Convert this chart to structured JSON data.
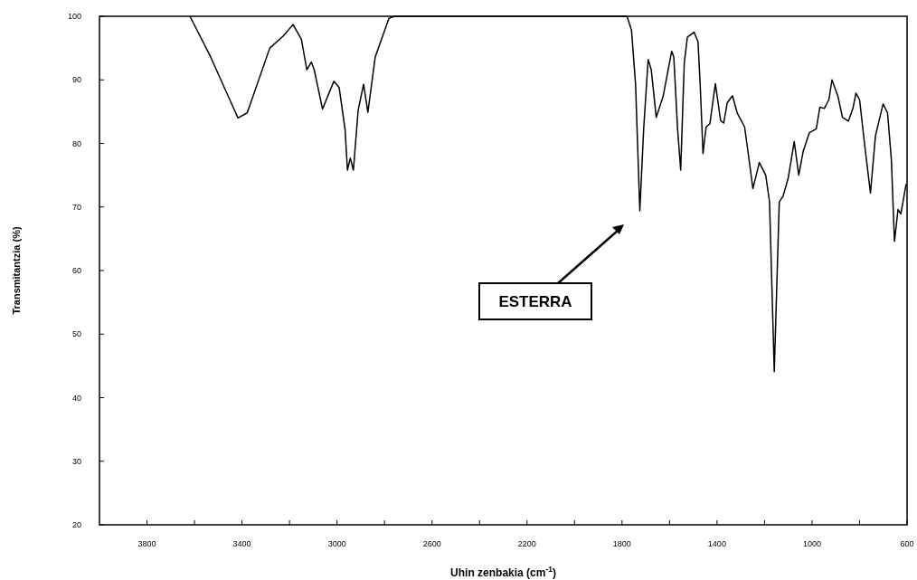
{
  "chart_data": {
    "type": "line",
    "xlabel": "Uhin zenbakia (cm$^{-1}$)",
    "ylabel": "Transmitantzia (%)",
    "x": [
      3619,
      3532,
      3417,
      3378,
      3283,
      3226,
      3185,
      3150,
      3127,
      3108,
      3096,
      3061,
      3013,
      2991,
      2966,
      2956,
      2944,
      2931,
      2911,
      2888,
      2870,
      2839,
      2781,
      2756,
      1779,
      1760,
      1743,
      1725,
      1709,
      1690,
      1677,
      1656,
      1627,
      1591,
      1582,
      1566,
      1553,
      1538,
      1525,
      1497,
      1480,
      1471,
      1459,
      1446,
      1430,
      1407,
      1385,
      1372,
      1357,
      1335,
      1315,
      1284,
      1265,
      1249,
      1222,
      1195,
      1179,
      1159,
      1138,
      1122,
      1100,
      1075,
      1056,
      1037,
      1011,
      982,
      967,
      948,
      929,
      916,
      891,
      872,
      847,
      828,
      815,
      800,
      777,
      754,
      733,
      701,
      682,
      666,
      653,
      638,
      626,
      604
    ],
    "series": [
      {
        "color": "#000000",
        "values": [
          100,
          93.6,
          84.0,
          84.8,
          95.0,
          96.9,
          98.7,
          96.4,
          91.6,
          92.8,
          91.6,
          85.4,
          89.8,
          88.8,
          82.2,
          75.8,
          77.7,
          75.8,
          85.2,
          89.3,
          84.9,
          93.6,
          99.7,
          100,
          100,
          97.8,
          89.3,
          69.4,
          82.2,
          93.2,
          91.6,
          84.1,
          87.4,
          94.5,
          93.6,
          82.2,
          75.8,
          92.6,
          96.7,
          97.5,
          96.0,
          89.3,
          78.4,
          82.6,
          83.1,
          89.4,
          83.6,
          83.2,
          86.4,
          87.5,
          84.8,
          82.6,
          77.4,
          72.9,
          77.0,
          75.0,
          70.8,
          44.1,
          70.8,
          71.7,
          74.6,
          80.3,
          75.0,
          78.8,
          81.7,
          82.3,
          85.7,
          85.5,
          86.9,
          90.0,
          87.4,
          84.1,
          83.5,
          85.5,
          87.9,
          86.9,
          79.3,
          72.2,
          81.2,
          86.2,
          84.8,
          77.4,
          64.6,
          69.6,
          68.9,
          73.6
        ]
      }
    ],
    "xlim": [
      4000,
      600
    ],
    "xticks": [
      3800,
      {
        "value": 3600,
        "label": null
      },
      3400,
      {
        "value": 3200,
        "label": null
      },
      3000,
      {
        "value": 2800,
        "label": null
      },
      2600,
      {
        "value": 2400,
        "label": null
      },
      2200,
      {
        "value": 2000,
        "label": null
      },
      1800,
      {
        "value": 1600,
        "label": null
      },
      1400,
      {
        "value": 1200,
        "label": null
      },
      1000,
      {
        "value": 800,
        "label": null
      },
      600
    ],
    "ylim": [
      20,
      100
    ],
    "yticks": [
      20,
      30,
      40,
      50,
      60,
      70,
      80,
      90,
      100
    ],
    "annotations": [
      "ESTERRA"
    ],
    "grid": false,
    "marker": "none",
    "line_style": "solid"
  }
}
